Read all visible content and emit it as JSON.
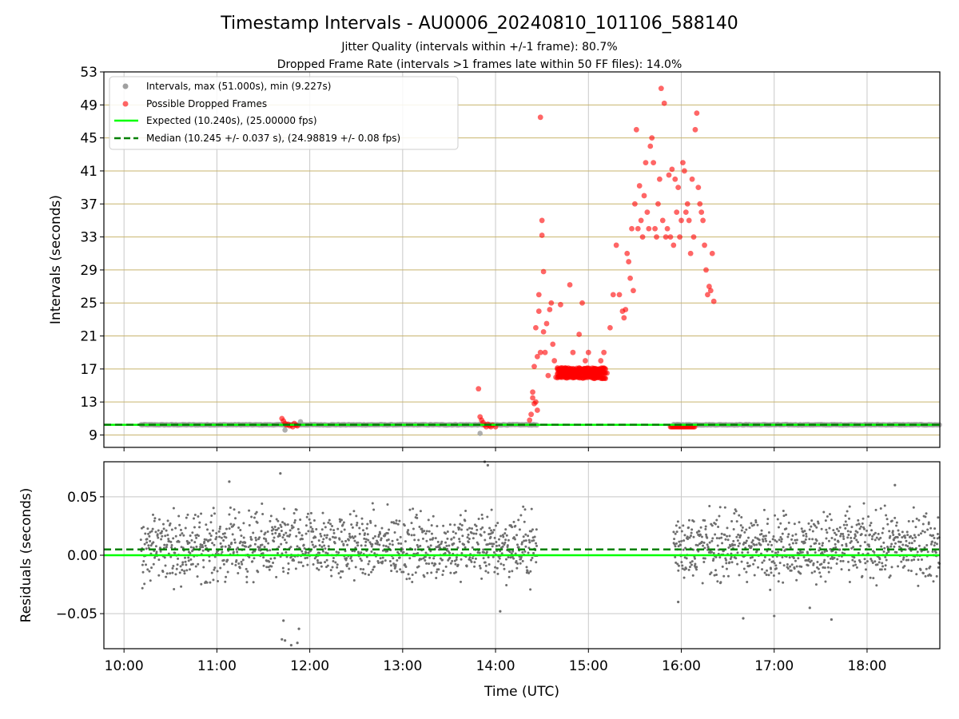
{
  "figure": {
    "title": "Timestamp Intervals - AU0006_20240810_101106_588140",
    "subtitle_1": "Jitter Quality (intervals within +/-1 frame): 80.7%",
    "subtitle_2": "Dropped Frame Rate (intervals >1 frames late within 50 FF files): 14.0%",
    "xlabel": "Time (UTC)"
  },
  "colors": {
    "normal_points": "#a0a0a0",
    "dropped_points": "#ff0000",
    "expected_line": "#00ff00",
    "median_line": "#008000",
    "hgrid": "#c8b46e",
    "vgrid": "#c8c8c8",
    "residual_points": "#6e6e6e"
  },
  "chart_data": [
    {
      "type": "scatter",
      "ylabel": "Intervals (seconds)",
      "xlim": [
        "09:47",
        "18:47"
      ],
      "ylim": [
        7.5,
        53
      ],
      "x_ticks": [
        "10:00",
        "11:00",
        "12:00",
        "13:00",
        "14:00",
        "15:00",
        "16:00",
        "17:00",
        "18:00"
      ],
      "y_ticks": [
        9,
        13,
        17,
        21,
        25,
        29,
        33,
        37,
        41,
        45,
        49,
        53
      ],
      "legend_position": "top-left",
      "legend": [
        "Intervals, max (51.000s), min (9.227s)",
        "Possible Dropped Frames",
        "Expected (10.240s), (25.00000 fps)",
        "Median (10.245 +/- 0.037 s), (24.98819 +/- 0.08 fps)"
      ],
      "expected_value": 10.24,
      "median_value": 10.245,
      "normal_ranges": [
        {
          "start": "10:11",
          "end": "14:27",
          "value": 10.24
        },
        {
          "start": "15:55",
          "end": "18:47",
          "value": 10.24
        }
      ],
      "normal_outliers": [
        {
          "x": "11:44",
          "y": 9.6
        },
        {
          "x": "11:54",
          "y": 10.6
        },
        {
          "x": "13:50",
          "y": 9.2
        }
      ],
      "dropped_points": [
        {
          "x": "11:42",
          "y": 11.0
        },
        {
          "x": "11:43",
          "y": 10.7
        },
        {
          "x": "11:44",
          "y": 10.4
        },
        {
          "x": "11:45",
          "y": 10.2
        },
        {
          "x": "11:46",
          "y": 10.3
        },
        {
          "x": "11:47",
          "y": 10.1
        },
        {
          "x": "11:48",
          "y": 10.2
        },
        {
          "x": "11:49",
          "y": 10.0
        },
        {
          "x": "11:50",
          "y": 10.4
        },
        {
          "x": "11:51",
          "y": 10.2
        },
        {
          "x": "11:52",
          "y": 10.1
        },
        {
          "x": "13:49",
          "y": 14.6
        },
        {
          "x": "13:50",
          "y": 11.2
        },
        {
          "x": "13:51",
          "y": 10.8
        },
        {
          "x": "13:52",
          "y": 10.5
        },
        {
          "x": "13:53",
          "y": 10.2
        },
        {
          "x": "13:54",
          "y": 10.0
        },
        {
          "x": "13:55",
          "y": 10.3
        },
        {
          "x": "13:56",
          "y": 10.1
        },
        {
          "x": "13:57",
          "y": 10.0
        },
        {
          "x": "13:58",
          "y": 10.2
        },
        {
          "x": "14:00",
          "y": 10.0
        },
        {
          "x": "14:22",
          "y": 10.8
        },
        {
          "x": "14:23",
          "y": 11.5
        },
        {
          "x": "14:24",
          "y": 13.5
        },
        {
          "x": "14:24",
          "y": 14.2
        },
        {
          "x": "14:25",
          "y": 12.8
        },
        {
          "x": "14:25",
          "y": 17.3
        },
        {
          "x": "14:26",
          "y": 22.0
        },
        {
          "x": "14:26",
          "y": 13.0
        },
        {
          "x": "14:27",
          "y": 18.5
        },
        {
          "x": "14:27",
          "y": 12.0
        },
        {
          "x": "14:28",
          "y": 24.0
        },
        {
          "x": "14:28",
          "y": 26.0
        },
        {
          "x": "14:29",
          "y": 19.0
        },
        {
          "x": "14:29",
          "y": 47.5
        },
        {
          "x": "14:30",
          "y": 35.0
        },
        {
          "x": "14:30",
          "y": 33.2
        },
        {
          "x": "14:31",
          "y": 28.8
        },
        {
          "x": "14:31",
          "y": 21.5
        },
        {
          "x": "14:32",
          "y": 19.0
        },
        {
          "x": "14:33",
          "y": 22.5
        },
        {
          "x": "14:34",
          "y": 16.2
        },
        {
          "x": "14:35",
          "y": 24.2
        },
        {
          "x": "14:36",
          "y": 25.0
        },
        {
          "x": "14:37",
          "y": 20.0
        },
        {
          "x": "14:38",
          "y": 18.0
        },
        {
          "x": "14:39",
          "y": 16.0
        },
        {
          "x": "14:40",
          "y": 17.0
        },
        {
          "x": "14:42",
          "y": 24.8
        },
        {
          "x": "14:44",
          "y": 16.5
        },
        {
          "x": "14:46",
          "y": 16.0
        },
        {
          "x": "14:48",
          "y": 27.2
        },
        {
          "x": "14:50",
          "y": 19.0
        },
        {
          "x": "14:52",
          "y": 16.5
        },
        {
          "x": "14:54",
          "y": 21.2
        },
        {
          "x": "14:56",
          "y": 25.0
        },
        {
          "x": "14:58",
          "y": 18.0
        },
        {
          "x": "15:00",
          "y": 19.0
        },
        {
          "x": "15:02",
          "y": 16.2
        },
        {
          "x": "15:04",
          "y": 17.0
        },
        {
          "x": "15:06",
          "y": 16.0
        },
        {
          "x": "15:08",
          "y": 18.0
        },
        {
          "x": "15:10",
          "y": 19.0
        },
        {
          "x": "15:12",
          "y": 16.5
        },
        {
          "x": "15:14",
          "y": 22.0
        },
        {
          "x": "15:16",
          "y": 26.0
        },
        {
          "x": "15:18",
          "y": 32.0
        },
        {
          "x": "15:20",
          "y": 26.0
        },
        {
          "x": "15:22",
          "y": 24.0
        },
        {
          "x": "15:23",
          "y": 23.2
        },
        {
          "x": "15:24",
          "y": 24.2
        },
        {
          "x": "15:25",
          "y": 31.0
        },
        {
          "x": "15:26",
          "y": 30.0
        },
        {
          "x": "15:27",
          "y": 28.0
        },
        {
          "x": "15:28",
          "y": 34.0
        },
        {
          "x": "15:29",
          "y": 26.5
        },
        {
          "x": "15:30",
          "y": 37.0
        },
        {
          "x": "15:31",
          "y": 46.0
        },
        {
          "x": "15:32",
          "y": 34.0
        },
        {
          "x": "15:33",
          "y": 39.2
        },
        {
          "x": "15:34",
          "y": 35.0
        },
        {
          "x": "15:35",
          "y": 33.0
        },
        {
          "x": "15:36",
          "y": 38.0
        },
        {
          "x": "15:37",
          "y": 42.0
        },
        {
          "x": "15:38",
          "y": 36.0
        },
        {
          "x": "15:39",
          "y": 34.0
        },
        {
          "x": "15:40",
          "y": 44.0
        },
        {
          "x": "15:41",
          "y": 45.0
        },
        {
          "x": "15:42",
          "y": 42.0
        },
        {
          "x": "15:43",
          "y": 34.0
        },
        {
          "x": "15:44",
          "y": 33.0
        },
        {
          "x": "15:45",
          "y": 37.0
        },
        {
          "x": "15:46",
          "y": 40.0
        },
        {
          "x": "15:47",
          "y": 51.0
        },
        {
          "x": "15:48",
          "y": 35.0
        },
        {
          "x": "15:49",
          "y": 49.2
        },
        {
          "x": "15:50",
          "y": 33.0
        },
        {
          "x": "15:51",
          "y": 34.0
        },
        {
          "x": "15:52",
          "y": 40.5
        },
        {
          "x": "15:53",
          "y": 33.0
        },
        {
          "x": "15:54",
          "y": 41.2
        },
        {
          "x": "15:55",
          "y": 32.0
        },
        {
          "x": "15:56",
          "y": 40.0
        },
        {
          "x": "15:57",
          "y": 36.0
        },
        {
          "x": "15:58",
          "y": 39.0
        },
        {
          "x": "15:59",
          "y": 33.0
        },
        {
          "x": "16:00",
          "y": 35.0
        },
        {
          "x": "16:01",
          "y": 42.0
        },
        {
          "x": "16:02",
          "y": 41.0
        },
        {
          "x": "16:03",
          "y": 36.0
        },
        {
          "x": "16:04",
          "y": 37.0
        },
        {
          "x": "16:05",
          "y": 35.0
        },
        {
          "x": "16:06",
          "y": 31.0
        },
        {
          "x": "16:07",
          "y": 40.0
        },
        {
          "x": "16:08",
          "y": 33.0
        },
        {
          "x": "16:09",
          "y": 46.0
        },
        {
          "x": "16:10",
          "y": 48.0
        },
        {
          "x": "16:11",
          "y": 39.0
        },
        {
          "x": "16:12",
          "y": 37.0
        },
        {
          "x": "16:13",
          "y": 36.0
        },
        {
          "x": "16:14",
          "y": 35.0
        },
        {
          "x": "16:15",
          "y": 32.0
        },
        {
          "x": "16:16",
          "y": 29.0
        },
        {
          "x": "16:17",
          "y": 26.0
        },
        {
          "x": "16:18",
          "y": 27.0
        },
        {
          "x": "16:19",
          "y": 26.5
        },
        {
          "x": "16:20",
          "y": 31.0
        },
        {
          "x": "16:21",
          "y": 25.2
        }
      ],
      "dropped_dense_ranges": [
        {
          "start": "14:40",
          "end": "15:11",
          "values": [
            16.0,
            16.5,
            17.0
          ]
        }
      ],
      "dropped_baseline_range": {
        "start": "15:53",
        "end": "16:09",
        "value": 10.0
      }
    },
    {
      "type": "scatter",
      "ylabel": "Residuals (seconds)",
      "xlabel": "Time (UTC)",
      "xlim": [
        "09:47",
        "18:47"
      ],
      "ylim": [
        -0.08,
        0.08
      ],
      "y_ticks": [
        -0.05,
        0.0,
        0.05
      ],
      "y_tick_labels": [
        "−0.05",
        "0.00",
        "0.05"
      ],
      "x_ticks": [
        "10:00",
        "11:00",
        "12:00",
        "13:00",
        "14:00",
        "15:00",
        "16:00",
        "17:00",
        "18:00"
      ],
      "expected_residual": 0.0,
      "median_residual": 0.005,
      "residual_ranges": [
        {
          "start": "10:11",
          "end": "14:27"
        },
        {
          "start": "15:55",
          "end": "18:47"
        }
      ],
      "residual_spread": {
        "low": -0.035,
        "high": 0.05
      },
      "residual_outliers": [
        {
          "x": "11:41",
          "y": 0.07
        },
        {
          "x": "11:42",
          "y": -0.072
        },
        {
          "x": "11:43",
          "y": -0.056
        },
        {
          "x": "11:44",
          "y": -0.073
        },
        {
          "x": "11:48",
          "y": -0.077
        },
        {
          "x": "11:52",
          "y": -0.075
        },
        {
          "x": "11:53",
          "y": -0.063
        },
        {
          "x": "11:08",
          "y": 0.063
        },
        {
          "x": "13:53",
          "y": 0.08
        },
        {
          "x": "13:55",
          "y": 0.077
        },
        {
          "x": "14:03",
          "y": -0.048
        },
        {
          "x": "16:40",
          "y": -0.054
        },
        {
          "x": "17:00",
          "y": -0.052
        },
        {
          "x": "17:23",
          "y": -0.045
        },
        {
          "x": "17:37",
          "y": -0.055
        },
        {
          "x": "18:18",
          "y": 0.06
        },
        {
          "x": "15:58",
          "y": -0.04
        }
      ]
    }
  ]
}
